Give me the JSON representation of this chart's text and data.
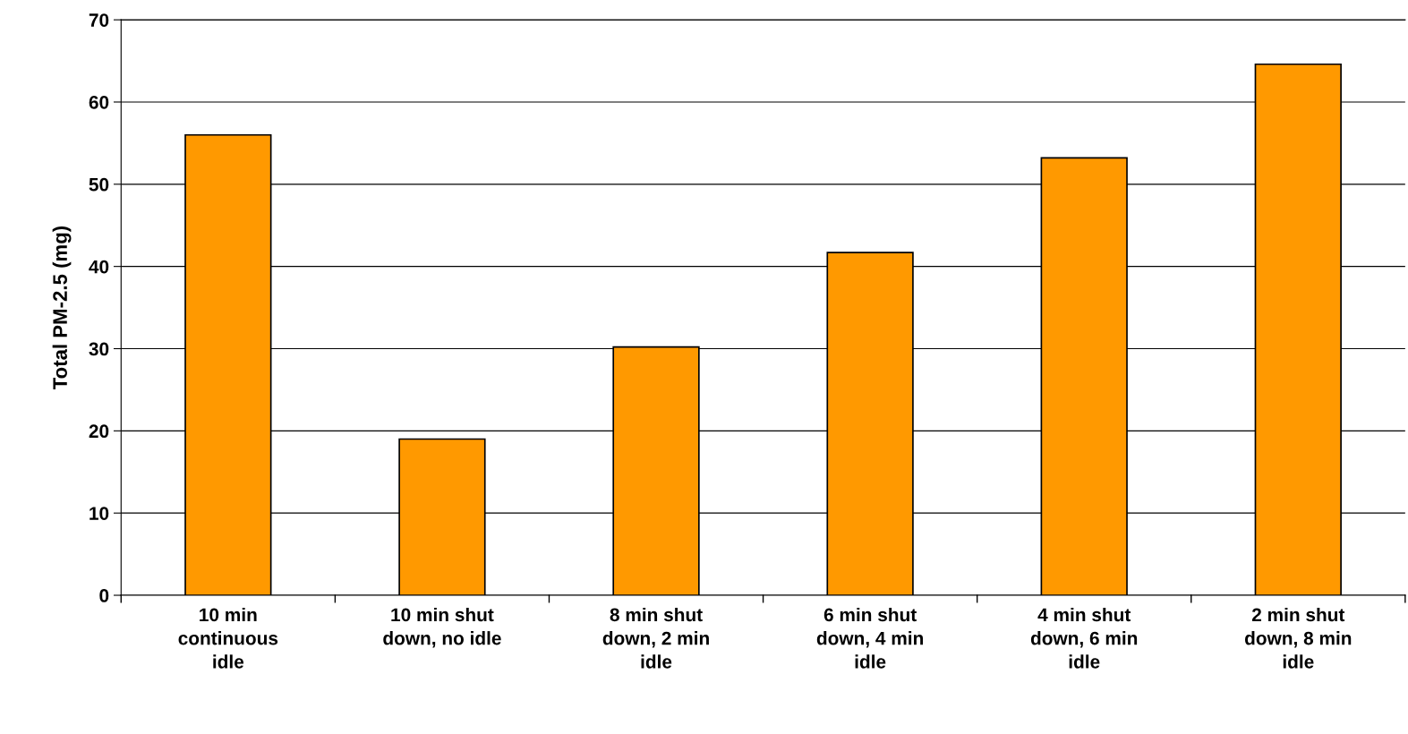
{
  "chart_data": {
    "type": "bar",
    "ylabel": "Total PM-2.5 (mg)",
    "categories": [
      "10 min\ncontinuous\nidle",
      "10 min shut\ndown, no idle",
      "8 min shut\ndown, 2 min\nidle",
      "6 min shut\ndown, 4 min\nidle",
      "4 min shut\ndown, 6 min\nidle",
      "2 min shut\ndown, 8 min\nidle"
    ],
    "values": [
      56.0,
      19.0,
      30.2,
      41.7,
      53.2,
      64.6
    ],
    "color": "#ff9900",
    "ylim": [
      0,
      70
    ],
    "yticks": [
      0,
      10,
      20,
      30,
      40,
      50,
      60,
      70
    ],
    "grid": "y"
  }
}
